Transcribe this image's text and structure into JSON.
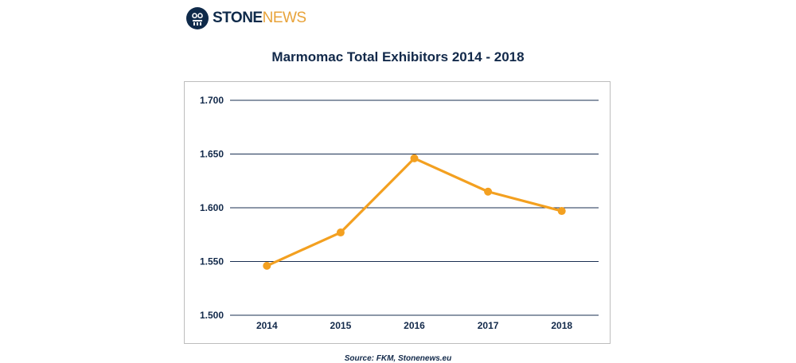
{
  "brand": {
    "name_bold": "STONE",
    "name_light": "NEWS",
    "navy": "#0f2a4a",
    "gold": "#e8a33a",
    "icon": "stonenews-logo-icon"
  },
  "chart_data": {
    "type": "line",
    "title": "Marmomac Total Exhibitors 2014 - 2018",
    "categories": [
      "2014",
      "2015",
      "2016",
      "2017",
      "2018"
    ],
    "series": [
      {
        "values": [
          1.546,
          1.577,
          1.646,
          1.615,
          1.597
        ],
        "color": "#f3a020"
      }
    ],
    "yticks": [
      "1.500",
      "1.550",
      "1.600",
      "1.650",
      "1.700"
    ],
    "ytick_values": [
      1.5,
      1.55,
      1.6,
      1.65,
      1.7
    ],
    "ylim": [
      1.5,
      1.7
    ],
    "grid": true,
    "gridline_color": "#1a2f52",
    "xlabel": "",
    "ylabel": ""
  },
  "source": "Source: FKM, Stonenews.eu"
}
